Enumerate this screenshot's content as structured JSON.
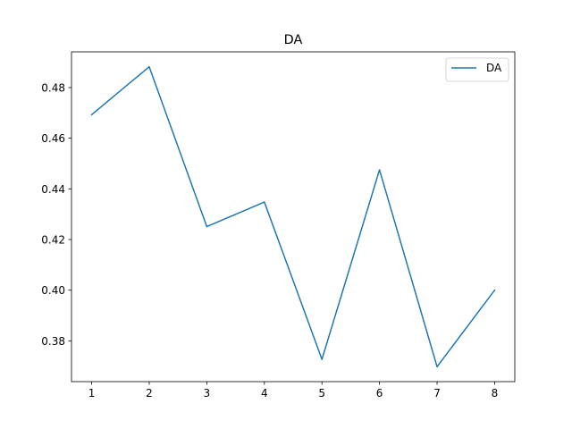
{
  "chart_data": {
    "type": "line",
    "title": "DA",
    "xlabel": "",
    "ylabel": "",
    "x": [
      1,
      2,
      3,
      4,
      5,
      6,
      7,
      8
    ],
    "series": [
      {
        "name": "DA",
        "color": "#1f77b4",
        "values": [
          0.4693,
          0.4882,
          0.4251,
          0.4348,
          0.3727,
          0.4475,
          0.3698,
          0.4
        ]
      }
    ],
    "xlim": [
      0.65,
      8.35
    ],
    "ylim": [
      0.3639,
      0.4941
    ],
    "xticks": [
      1,
      2,
      3,
      4,
      5,
      6,
      7,
      8
    ],
    "yticks": [
      0.38,
      0.4,
      0.42,
      0.44,
      0.46,
      0.48
    ],
    "ytick_labels": [
      "0.38",
      "0.40",
      "0.42",
      "0.44",
      "0.46",
      "0.48"
    ],
    "grid": false,
    "legend": "top-right"
  }
}
